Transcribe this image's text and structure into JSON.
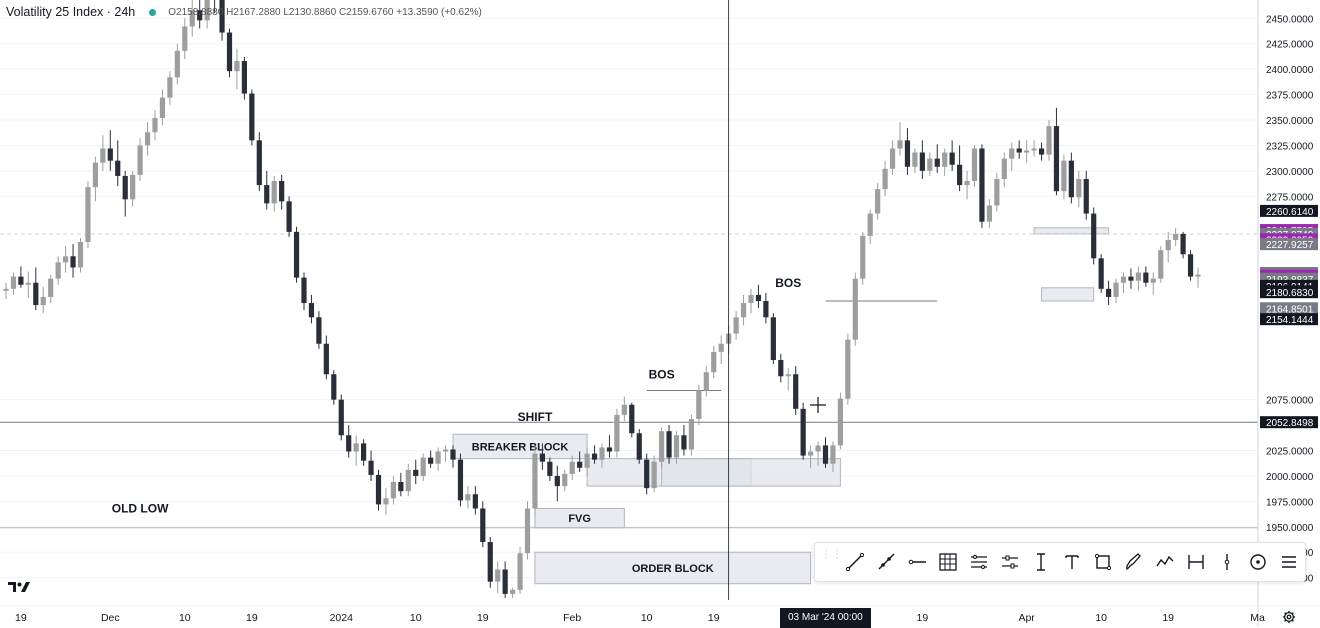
{
  "legend": {
    "symbol": "Volatility 25 Index · 24h",
    "ohlc": "O2158.8880 H2167.2880 L2130.8860 C2159.6760 +13.3590 (+0.62%)"
  },
  "colors": {
    "up": "#9e9e9e",
    "down": "#2a2e39",
    "grid": "#f0f3fa",
    "axis_text": "#131722",
    "purple": "#9c27b0",
    "dark_label": "#131722",
    "zone_fill": "#e0e3eb"
  },
  "chart_data": {
    "type": "candlestick",
    "title": "Volatility 25 Index · 24h",
    "xlabel": "",
    "ylabel": "",
    "y_axis": {
      "ticks": [
        2450,
        2425,
        2400,
        2375,
        2350,
        2325,
        2300,
        2275,
        2075,
        2025,
        2000,
        1975,
        1950,
        1925,
        1900
      ],
      "range": [
        1878,
        2468
      ]
    },
    "x_axis": {
      "ticks": [
        {
          "label": "19",
          "i": 2
        },
        {
          "label": "Dec",
          "i": 14
        },
        {
          "label": "10",
          "i": 24
        },
        {
          "label": "19",
          "i": 33
        },
        {
          "label": "2024",
          "i": 45
        },
        {
          "label": "10",
          "i": 55
        },
        {
          "label": "19",
          "i": 64
        },
        {
          "label": "Feb",
          "i": 76
        },
        {
          "label": "10",
          "i": 86
        },
        {
          "label": "19",
          "i": 95
        },
        {
          "label": "10",
          "i": 114
        },
        {
          "label": "19",
          "i": 123
        },
        {
          "label": "Apr",
          "i": 137
        },
        {
          "label": "10",
          "i": 147
        },
        {
          "label": "19",
          "i": 156
        },
        {
          "label": "Ma",
          "i": 168
        }
      ]
    },
    "candles": [
      [
        2182,
        2190,
        2174,
        2184
      ],
      [
        2184,
        2200,
        2178,
        2196
      ],
      [
        2196,
        2206,
        2185,
        2188
      ],
      [
        2188,
        2201,
        2175,
        2190
      ],
      [
        2190,
        2205,
        2163,
        2168
      ],
      [
        2168,
        2186,
        2160,
        2176
      ],
      [
        2176,
        2198,
        2170,
        2194
      ],
      [
        2194,
        2216,
        2188,
        2210
      ],
      [
        2210,
        2226,
        2200,
        2216
      ],
      [
        2216,
        2228,
        2195,
        2205
      ],
      [
        2205,
        2234,
        2200,
        2230
      ],
      [
        2230,
        2290,
        2224,
        2284
      ],
      [
        2284,
        2314,
        2270,
        2308
      ],
      [
        2308,
        2335,
        2300,
        2322
      ],
      [
        2322,
        2340,
        2300,
        2310
      ],
      [
        2310,
        2330,
        2285,
        2295
      ],
      [
        2295,
        2300,
        2255,
        2272
      ],
      [
        2272,
        2300,
        2265,
        2296
      ],
      [
        2296,
        2332,
        2290,
        2325
      ],
      [
        2325,
        2348,
        2315,
        2338
      ],
      [
        2338,
        2360,
        2330,
        2352
      ],
      [
        2352,
        2380,
        2345,
        2372
      ],
      [
        2372,
        2398,
        2365,
        2392
      ],
      [
        2392,
        2425,
        2385,
        2418
      ],
      [
        2418,
        2450,
        2410,
        2442
      ],
      [
        2442,
        2470,
        2432,
        2458
      ],
      [
        2458,
        2472,
        2440,
        2448
      ],
      [
        2448,
        2480,
        2440,
        2470
      ],
      [
        2470,
        2485,
        2455,
        2468
      ],
      [
        2468,
        2470,
        2428,
        2436
      ],
      [
        2436,
        2440,
        2392,
        2398
      ],
      [
        2398,
        2420,
        2380,
        2408
      ],
      [
        2408,
        2412,
        2370,
        2376
      ],
      [
        2376,
        2380,
        2325,
        2330
      ],
      [
        2330,
        2338,
        2280,
        2286
      ],
      [
        2286,
        2300,
        2262,
        2268
      ],
      [
        2268,
        2295,
        2260,
        2290
      ],
      [
        2290,
        2296,
        2262,
        2270
      ],
      [
        2270,
        2275,
        2235,
        2240
      ],
      [
        2240,
        2245,
        2190,
        2195
      ],
      [
        2195,
        2200,
        2163,
        2170
      ],
      [
        2170,
        2178,
        2150,
        2156
      ],
      [
        2156,
        2162,
        2125,
        2130
      ],
      [
        2130,
        2138,
        2095,
        2100
      ],
      [
        2100,
        2104,
        2070,
        2075
      ],
      [
        2075,
        2080,
        2035,
        2040
      ],
      [
        2040,
        2050,
        2018,
        2024
      ],
      [
        2024,
        2040,
        2010,
        2032
      ],
      [
        2032,
        2036,
        2010,
        2015
      ],
      [
        2015,
        2025,
        1995,
        2001
      ],
      [
        2001,
        2006,
        1966,
        1972
      ],
      [
        1972,
        1988,
        1962,
        1978
      ],
      [
        1978,
        2000,
        1972,
        1994
      ],
      [
        1994,
        2003,
        1980,
        1985
      ],
      [
        1985,
        2012,
        1980,
        2006
      ],
      [
        2006,
        2016,
        1992,
        2000
      ],
      [
        2000,
        2022,
        1995,
        2018
      ],
      [
        2018,
        2025,
        2008,
        2012
      ],
      [
        2012,
        2028,
        2005,
        2024
      ],
      [
        2024,
        2030,
        2014,
        2026
      ],
      [
        2026,
        2030,
        2008,
        2016
      ],
      [
        2016,
        2022,
        1970,
        1976
      ],
      [
        1976,
        1990,
        1968,
        1982
      ],
      [
        1982,
        1990,
        1962,
        1968
      ],
      [
        1968,
        1975,
        1930,
        1935
      ],
      [
        1935,
        1940,
        1890,
        1896
      ],
      [
        1896,
        1916,
        1885,
        1908
      ],
      [
        1908,
        1916,
        1880,
        1884
      ],
      [
        1884,
        1890,
        1880,
        1888
      ],
      [
        1888,
        1930,
        1884,
        1924
      ],
      [
        1924,
        1975,
        1918,
        1968
      ],
      [
        1968,
        2030,
        1960,
        2022
      ],
      [
        2022,
        2032,
        2006,
        2014
      ],
      [
        2014,
        2018,
        1995,
        2000
      ],
      [
        2000,
        2010,
        1975,
        1990
      ],
      [
        1990,
        2006,
        1985,
        2002
      ],
      [
        2002,
        2020,
        1996,
        2014
      ],
      [
        2014,
        2024,
        2004,
        2008
      ],
      [
        2008,
        2028,
        2000,
        2022
      ],
      [
        2022,
        2030,
        2012,
        2016
      ],
      [
        2016,
        2032,
        2008,
        2028
      ],
      [
        2028,
        2040,
        2018,
        2024
      ],
      [
        2024,
        2066,
        2018,
        2060
      ],
      [
        2060,
        2078,
        2054,
        2070
      ],
      [
        2070,
        2072,
        2038,
        2042
      ],
      [
        2042,
        2046,
        2012,
        2016
      ],
      [
        2016,
        2022,
        1982,
        1988
      ],
      [
        1988,
        2020,
        1984,
        2014
      ],
      [
        2014,
        2048,
        2008,
        2044
      ],
      [
        2044,
        2050,
        2012,
        2018
      ],
      [
        2018,
        2044,
        2012,
        2040
      ],
      [
        2040,
        2050,
        2020,
        2026
      ],
      [
        2026,
        2060,
        2020,
        2056
      ],
      [
        2056,
        2090,
        2050,
        2084
      ],
      [
        2084,
        2108,
        2078,
        2102
      ],
      [
        2102,
        2128,
        2096,
        2122
      ],
      [
        2122,
        2138,
        2110,
        2130
      ],
      [
        2130,
        2148,
        2120,
        2140
      ],
      [
        2140,
        2162,
        2134,
        2156
      ],
      [
        2156,
        2178,
        2148,
        2170
      ],
      [
        2170,
        2184,
        2160,
        2178
      ],
      [
        2178,
        2188,
        2165,
        2172
      ],
      [
        2172,
        2180,
        2150,
        2156
      ],
      [
        2156,
        2160,
        2110,
        2114
      ],
      [
        2114,
        2120,
        2092,
        2098
      ],
      [
        2098,
        2106,
        2084,
        2100
      ],
      [
        2100,
        2108,
        2060,
        2066
      ],
      [
        2066,
        2072,
        2016,
        2020
      ],
      [
        2020,
        2030,
        2008,
        2024
      ],
      [
        2024,
        2034,
        2010,
        2030
      ],
      [
        2030,
        2038,
        2008,
        2012
      ],
      [
        2012,
        2034,
        2004,
        2030
      ],
      [
        2030,
        2082,
        2026,
        2076
      ],
      [
        2076,
        2140,
        2070,
        2134
      ],
      [
        2134,
        2200,
        2128,
        2194
      ],
      [
        2194,
        2240,
        2188,
        2236
      ],
      [
        2236,
        2262,
        2228,
        2258
      ],
      [
        2258,
        2288,
        2252,
        2282
      ],
      [
        2282,
        2310,
        2275,
        2302
      ],
      [
        2302,
        2330,
        2296,
        2322
      ],
      [
        2322,
        2348,
        2315,
        2330
      ],
      [
        2330,
        2342,
        2296,
        2304
      ],
      [
        2304,
        2322,
        2298,
        2318
      ],
      [
        2318,
        2330,
        2292,
        2300
      ],
      [
        2300,
        2318,
        2295,
        2312
      ],
      [
        2312,
        2326,
        2298,
        2304
      ],
      [
        2304,
        2322,
        2295,
        2318
      ],
      [
        2318,
        2330,
        2300,
        2306
      ],
      [
        2306,
        2325,
        2280,
        2286
      ],
      [
        2286,
        2300,
        2272,
        2290
      ],
      [
        2290,
        2325,
        2284,
        2322
      ],
      [
        2322,
        2326,
        2244,
        2250
      ],
      [
        2250,
        2272,
        2244,
        2266
      ],
      [
        2266,
        2298,
        2260,
        2292
      ],
      [
        2292,
        2318,
        2284,
        2312
      ],
      [
        2312,
        2328,
        2300,
        2322
      ],
      [
        2322,
        2330,
        2312,
        2318
      ],
      [
        2318,
        2330,
        2308,
        2320
      ],
      [
        2320,
        2330,
        2314,
        2322
      ],
      [
        2322,
        2328,
        2310,
        2316
      ],
      [
        2316,
        2350,
        2310,
        2344
      ],
      [
        2344,
        2362,
        2276,
        2280
      ],
      [
        2280,
        2316,
        2272,
        2310
      ],
      [
        2310,
        2318,
        2268,
        2274
      ],
      [
        2274,
        2300,
        2264,
        2292
      ],
      [
        2292,
        2300,
        2252,
        2258
      ],
      [
        2258,
        2264,
        2208,
        2214
      ],
      [
        2214,
        2218,
        2180,
        2184
      ],
      [
        2184,
        2192,
        2168,
        2176
      ],
      [
        2176,
        2194,
        2170,
        2190
      ],
      [
        2190,
        2200,
        2180,
        2196
      ],
      [
        2196,
        2204,
        2184,
        2192
      ],
      [
        2192,
        2206,
        2182,
        2200
      ],
      [
        2200,
        2206,
        2186,
        2190
      ],
      [
        2190,
        2200,
        2178,
        2194
      ],
      [
        2194,
        2226,
        2190,
        2222
      ],
      [
        2222,
        2240,
        2210,
        2232
      ],
      [
        2232,
        2244,
        2226,
        2238
      ],
      [
        2238,
        2240,
        2214,
        2218
      ],
      [
        2218,
        2222,
        2192,
        2196
      ],
      [
        2196,
        2205,
        2185,
        2198
      ]
    ],
    "levels": [
      {
        "name": "old-low-line",
        "value": 1949,
        "color": "#b2b5be"
      },
      {
        "name": "shift-line",
        "value": 2052.8,
        "color": "#787b86"
      },
      {
        "name": "dashed-line",
        "value": 2237.8,
        "color": "#d1d4dc",
        "dashed": true
      }
    ],
    "price_labels": [
      {
        "value": 2260.614,
        "text": "2260.6140",
        "bg": "#131722"
      },
      {
        "value": 2241.7795,
        "text": "2241.7795",
        "bg": "#9c27b0"
      },
      {
        "value": 2237.874,
        "text": "2237.8740",
        "bg": "#787b86"
      },
      {
        "value": 2232.6959,
        "text": "2232.6959",
        "bg": "#9c27b0"
      },
      {
        "value": 2227.9257,
        "text": "2227.9257",
        "bg": "#787b86"
      },
      {
        "value": 2199.554,
        "text": "2199.5540",
        "bg": "#787b86"
      },
      {
        "value": 2196.9673,
        "text": "2196.9673",
        "bg": "#9c27b0"
      },
      {
        "value": 2195.0022,
        "text": "2195.0022",
        "bg": "#9c27b0"
      },
      {
        "value": 2193.8837,
        "text": "2193.8837",
        "bg": "#787b86"
      },
      {
        "value": 2186.9141,
        "text": "2186.9141",
        "bg": "#131722"
      },
      {
        "value": 2181.515,
        "text": "2181.5150",
        "bg": "#131722"
      },
      {
        "value": 2180.683,
        "text": "2180.6830",
        "bg": "#131722"
      },
      {
        "value": 2164.8501,
        "text": "2164.8501",
        "bg": "#787b86"
      },
      {
        "value": 2154.1444,
        "text": "2154.1444",
        "bg": "#131722"
      },
      {
        "value": 2052.8498,
        "text": "2052.8498",
        "bg": "#131722"
      }
    ],
    "zones": [
      {
        "name": "breaker-block-zone",
        "label": "BREAKER BLOCK",
        "i0": 60,
        "i1": 78,
        "y0": 2017,
        "y1": 2041
      },
      {
        "name": "breaker-extension-zone",
        "label": "",
        "i0": 78,
        "i1": 100,
        "y0": 1990,
        "y1": 2017
      },
      {
        "name": "fvg-zone",
        "label": "FVG",
        "i0": 71,
        "i1": 83,
        "y0": 1949,
        "y1": 1968
      },
      {
        "name": "order-block-zone",
        "label": "ORDER BLOCK",
        "i0": 71,
        "i1": 108,
        "y0": 1894,
        "y1": 1925
      },
      {
        "name": "demand-zone",
        "label": "",
        "i0": 88,
        "i1": 112,
        "y0": 1990,
        "y1": 2017
      },
      {
        "name": "right-top-zone",
        "label": "",
        "i0": 138,
        "i1": 148,
        "y0": 2238,
        "y1": 2244
      },
      {
        "name": "right-bottom-zone",
        "label": "",
        "i0": 139,
        "i1": 146,
        "y0": 2172,
        "y1": 2185
      }
    ],
    "annotations": [
      {
        "name": "bos-label-1",
        "text": "BOS",
        "i": 88,
        "y": 2096
      },
      {
        "name": "bos-label-2",
        "text": "BOS",
        "i": 105,
        "y": 2186
      },
      {
        "name": "shift-label",
        "text": "SHIFT",
        "i": 71,
        "y": 2054
      },
      {
        "name": "old-low-label",
        "text": "OLD LOW",
        "i": 18,
        "y": 1964
      }
    ],
    "crosshair": {
      "i": 97,
      "date_label": "03 Mar '24   00:00"
    }
  },
  "toolbar": {
    "tools": [
      "trend-line-icon",
      "ray-icon",
      "horizontal-ray-icon",
      "fib-grid-icon",
      "parallel-channel-icon",
      "regression-icon",
      "vertical-text-icon",
      "text-icon",
      "rectangle-icon",
      "brush-icon",
      "path-icon",
      "date-range-icon",
      "vertical-line-icon",
      "circle-icon",
      "more-icon"
    ]
  }
}
